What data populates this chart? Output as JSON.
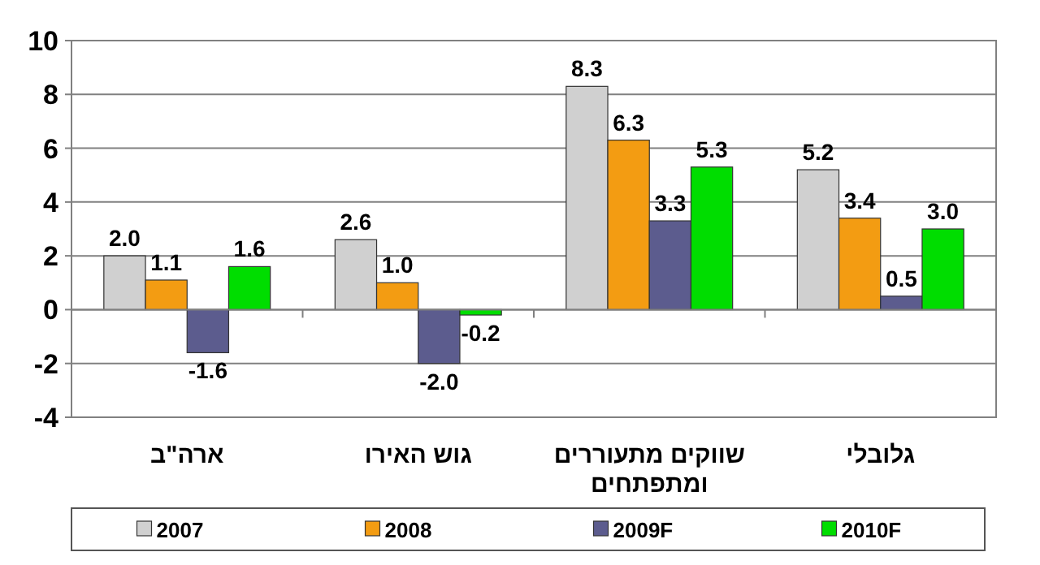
{
  "chart_data": {
    "type": "bar",
    "categories": [
      "ארה\"ב",
      "גוש האירו",
      "שווקים מתעוררים ומתפתחים",
      "גלובלי"
    ],
    "series": [
      {
        "name": "2007",
        "color": "#d0d0d0",
        "values": [
          2.0,
          2.6,
          8.3,
          5.2
        ],
        "value_labels": [
          "2.0",
          "2.6",
          "8.3",
          "5.2"
        ]
      },
      {
        "name": "2008",
        "color": "#f39c12",
        "values": [
          1.1,
          1.0,
          6.3,
          3.4
        ],
        "value_labels": [
          "1.1",
          "1.0",
          "6.3",
          "3.4"
        ]
      },
      {
        "name": "2009F",
        "color": "#5c5c8e",
        "values": [
          -1.6,
          -2.0,
          3.3,
          0.5
        ],
        "value_labels": [
          "-1.6",
          "-2.0",
          "3.3",
          "0.5"
        ]
      },
      {
        "name": "2010F",
        "color": "#00dd00",
        "values": [
          1.6,
          -0.2,
          5.3,
          3.0
        ],
        "value_labels": [
          "1.6",
          "-0.2",
          "5.3",
          "3.0"
        ]
      }
    ],
    "ylim": [
      -4,
      10
    ],
    "yticks": [
      -4,
      -2,
      0,
      2,
      4,
      6,
      8,
      10
    ],
    "grid": "y",
    "legend": "bottom"
  }
}
